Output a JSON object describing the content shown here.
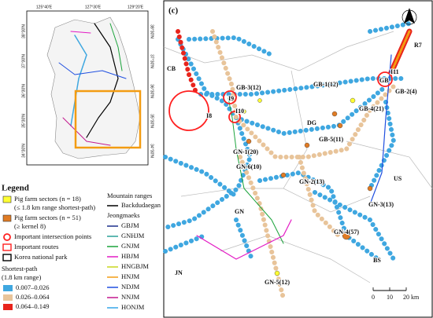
{
  "inset": {
    "lon_labels": [
      "125°40'E",
      "127°30'E",
      "129°20'E"
    ],
    "lat_labels": [
      "38°30'N",
      "37°30'N",
      "36°30'N",
      "35°30'N",
      "34°30'N"
    ]
  },
  "legend": {
    "title": "Legend",
    "items": [
      {
        "lines": [
          "Pig farm sectors (n = 18)",
          "(≤ 1.8 km range shortest-path)"
        ],
        "color": "#ffff33"
      },
      {
        "lines": [
          "Pig farm sectors (n = 51)",
          "(≥ kernel 8)"
        ],
        "color": "#e07b24"
      },
      {
        "lines": [
          "Important intersection points"
        ],
        "color": "#ff2020"
      },
      {
        "lines": [
          "Important routes"
        ],
        "color": "#ff2020"
      },
      {
        "lines": [
          "Korea national park"
        ],
        "color": "#000000"
      }
    ],
    "shortest_path": {
      "title": "Shortest-path",
      "subtitle": "(1.8 km range)",
      "classes": [
        {
          "label": "0.007–0.026",
          "color": "#3fa7e0"
        },
        {
          "label": "0.026–0.064",
          "color": "#e8c49a"
        },
        {
          "label": "0.064–0.149",
          "color": "#e8241c"
        }
      ]
    },
    "mountains": {
      "title": "Mountain ranges",
      "main": {
        "label": "Backdudaegan",
        "color": "#000000"
      },
      "sub_title": "Jeongmaeks",
      "ranges": [
        {
          "label": "GBJM",
          "color": "#1b2f8c"
        },
        {
          "label": "GNHJM",
          "color": "#2aa198"
        },
        {
          "label": "GNJM",
          "color": "#1aa33b"
        },
        {
          "label": "HBJM",
          "color": "#e31ac4"
        },
        {
          "label": "HNGBJM",
          "color": "#c8d51e"
        },
        {
          "label": "HNJM",
          "color": "#f39c12"
        },
        {
          "label": "NDJM",
          "color": "#1f4fe0"
        },
        {
          "label": "NNJM",
          "color": "#c2188f"
        },
        {
          "label": "HONJM",
          "color": "#35a6e8"
        }
      ]
    }
  },
  "panel": {
    "label": "(c)",
    "north": "N",
    "places": [
      "CB",
      "GB-3(12)",
      "GB-1(12)",
      "GB",
      "I11",
      "GB-2(4)",
      "R7",
      "I9",
      "I8",
      "I10",
      "GB-4(21)",
      "DG",
      "GB-5(11)",
      "GN-1(20)",
      "GN-6(10)",
      "GN-2(13)",
      "US",
      "GN",
      "GN-3(13)",
      "GN-4(57)",
      "BS",
      "JN",
      "GN-5(12)"
    ],
    "scale": [
      "0",
      "10",
      "20 km"
    ]
  }
}
